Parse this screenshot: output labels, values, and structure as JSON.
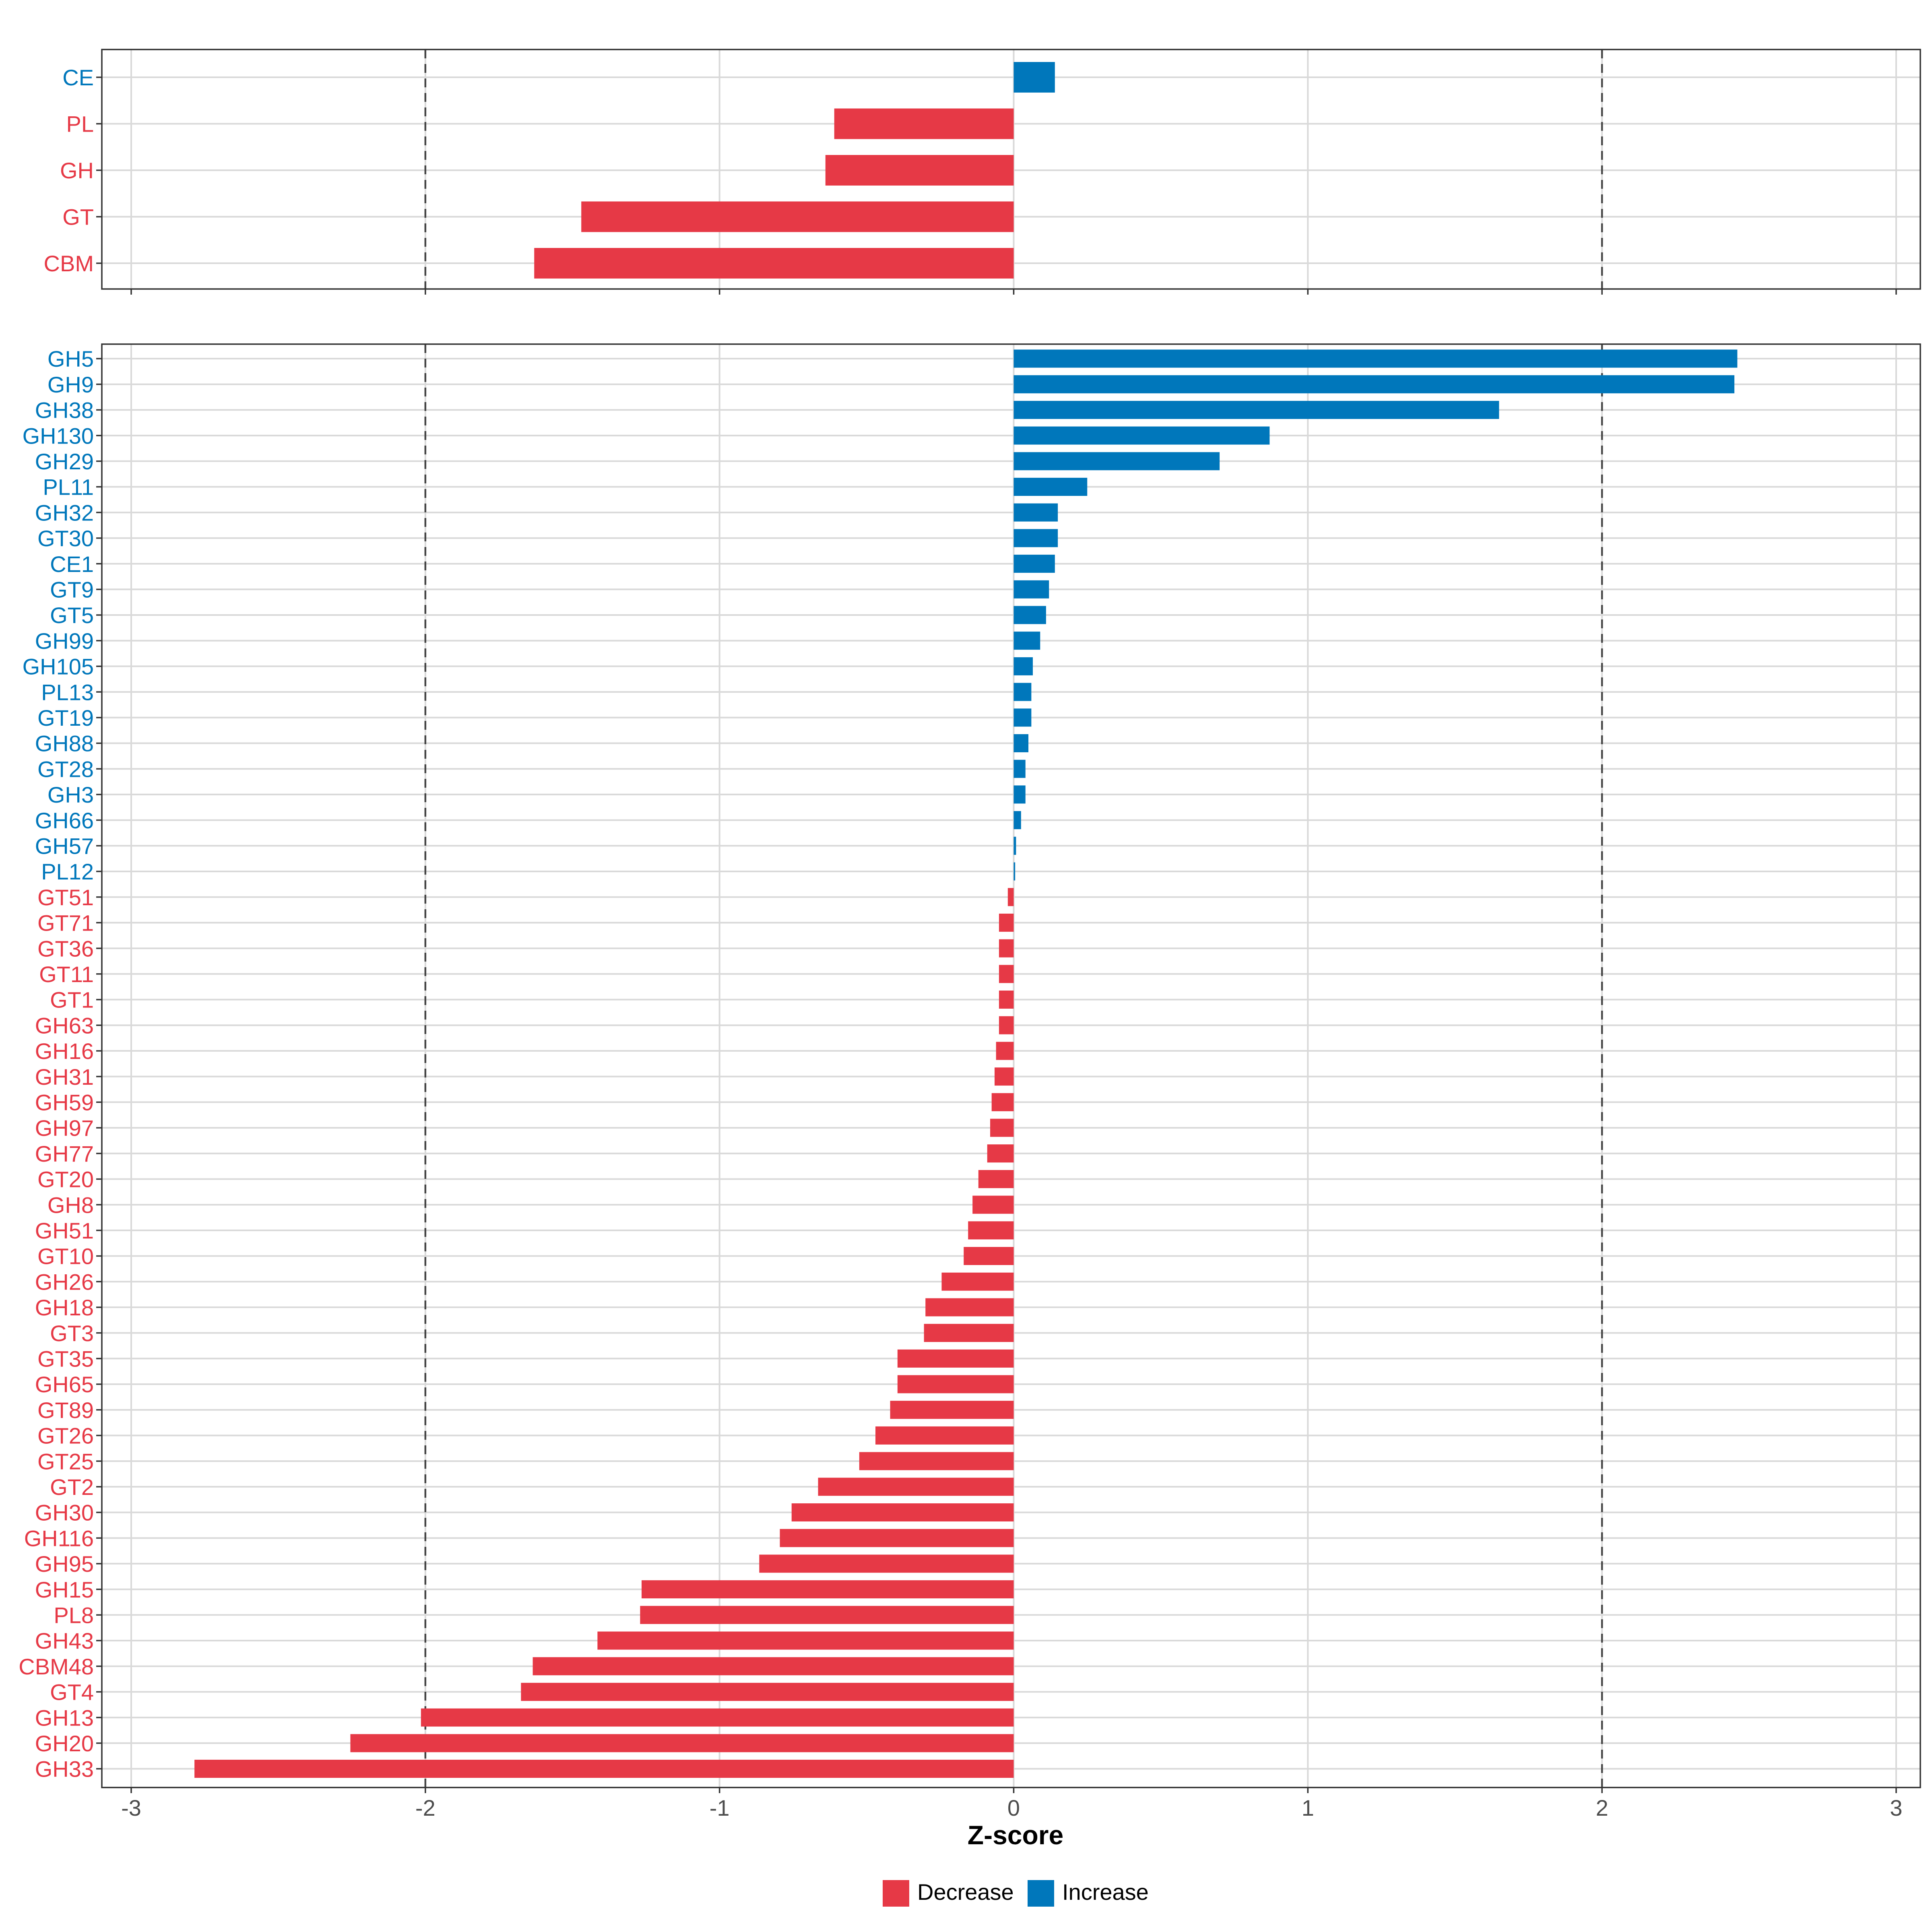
{
  "chart_data": {
    "type": "bar",
    "orientation": "horizontal",
    "xlabel": "Z-score",
    "xlim": [
      -3,
      3
    ],
    "x_ticks": [
      -3,
      -2,
      -1,
      0,
      1,
      2,
      3
    ],
    "x_tick_labels": [
      "-3",
      "-2",
      "-1",
      "0",
      "1",
      "2",
      "3"
    ],
    "reference_lines": [
      -2,
      2
    ],
    "grid": true,
    "legend_position": "bottom",
    "colors": {
      "Decrease": "#E63946",
      "Increase": "#0077BB",
      "grid": "#D9D9D9",
      "frame": "#333333",
      "ref_line": "#444444"
    },
    "legend": [
      {
        "label": "Decrease",
        "color": "#E63946"
      },
      {
        "label": "Increase",
        "color": "#0077BB"
      }
    ],
    "panels": [
      {
        "name": "class",
        "categories": [
          "CE",
          "PL",
          "GH",
          "GT",
          "CBM"
        ],
        "values": [
          0.14,
          -0.61,
          -0.64,
          -1.47,
          -1.63
        ]
      },
      {
        "name": "family",
        "categories": [
          "GH5",
          "GH9",
          "GH38",
          "GH130",
          "GH29",
          "PL11",
          "GH32",
          "GT30",
          "CE1",
          "GT9",
          "GT5",
          "GH99",
          "GH105",
          "PL13",
          "GT19",
          "GH88",
          "GT28",
          "GH3",
          "GH66",
          "GH57",
          "PL12",
          "GT51",
          "GT71",
          "GT36",
          "GT11",
          "GT1",
          "GH63",
          "GH16",
          "GH31",
          "GH59",
          "GH97",
          "GH77",
          "GT20",
          "GH8",
          "GH51",
          "GT10",
          "GH26",
          "GH18",
          "GT3",
          "GT35",
          "GH65",
          "GT89",
          "GT26",
          "GT25",
          "GT2",
          "GH30",
          "GH116",
          "GH95",
          "GH15",
          "PL8",
          "GH43",
          "CBM48",
          "GT4",
          "GH13",
          "GH20",
          "GH33"
        ],
        "values": [
          2.46,
          2.45,
          1.65,
          0.87,
          0.7,
          0.25,
          0.15,
          0.15,
          0.14,
          0.12,
          0.11,
          0.09,
          0.065,
          0.06,
          0.06,
          0.05,
          0.04,
          0.04,
          0.025,
          0.008,
          0.005,
          -0.02,
          -0.05,
          -0.05,
          -0.05,
          -0.05,
          -0.05,
          -0.06,
          -0.065,
          -0.075,
          -0.08,
          -0.09,
          -0.12,
          -0.14,
          -0.155,
          -0.17,
          -0.245,
          -0.3,
          -0.305,
          -0.395,
          -0.395,
          -0.42,
          -0.47,
          -0.525,
          -0.665,
          -0.755,
          -0.795,
          -0.865,
          -1.265,
          -1.27,
          -1.415,
          -1.635,
          -1.675,
          -2.015,
          -2.255,
          -2.785
        ]
      }
    ]
  }
}
